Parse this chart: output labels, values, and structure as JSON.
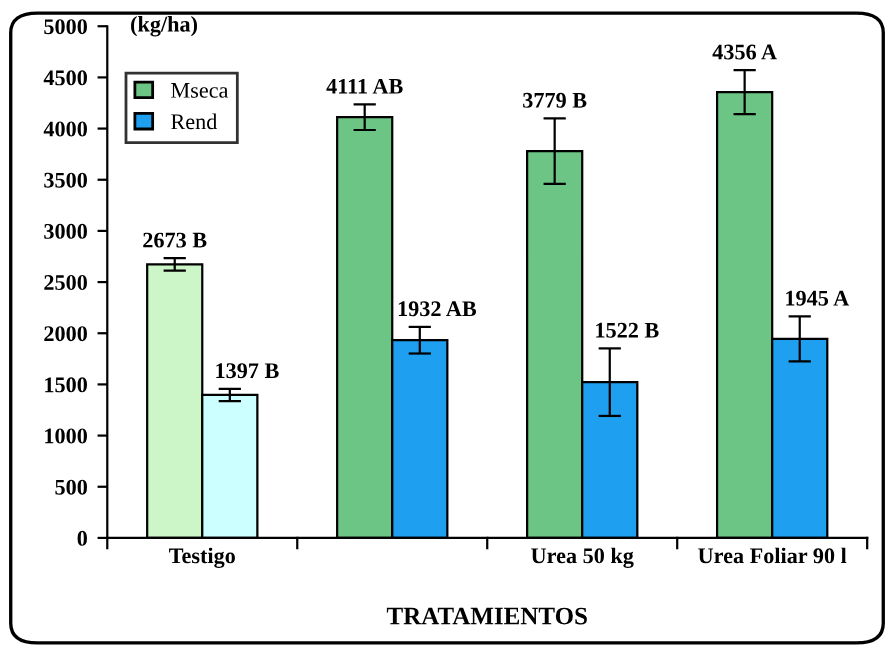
{
  "chart_data": {
    "type": "bar",
    "xlabel": "TRATAMIENTOS",
    "ylabel": "(kg/ha)",
    "categories": [
      "Testigo",
      null,
      "Urea 50 kg",
      "Urea Foliar 90 l"
    ],
    "series": [
      {
        "name": "Mseca",
        "color": "#6cc585",
        "colors": [
          "#ccf5c8",
          "#6cc585",
          "#6cc585",
          "#6cc585"
        ],
        "values": [
          2673,
          4111,
          3779,
          4356
        ],
        "errors": [
          60,
          125,
          320,
          215
        ],
        "value_labels": [
          "2673 B",
          "4111 AB",
          "3779 B",
          "4356 A"
        ]
      },
      {
        "name": "Rend",
        "color": "#1e9ff0",
        "colors": [
          "#ccffff",
          "#1e9ff0",
          "#1e9ff0",
          "#1e9ff0"
        ],
        "values": [
          1397,
          1932,
          1522,
          1945
        ],
        "errors": [
          60,
          130,
          330,
          220
        ],
        "value_labels": [
          "1397 B",
          "1932 AB",
          "1522 B",
          "1945 A"
        ]
      }
    ],
    "ylim": [
      0,
      5000
    ],
    "yticks": [
      0,
      500,
      1000,
      1500,
      2000,
      2500,
      3000,
      3500,
      4000,
      4500,
      5000
    ],
    "grid": false,
    "legend": "top left"
  }
}
